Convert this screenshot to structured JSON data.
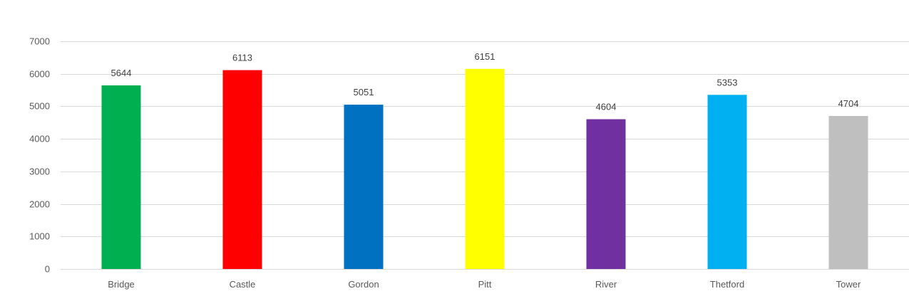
{
  "chart_data": {
    "type": "bar",
    "title": "",
    "xlabel": "",
    "ylabel": "",
    "categories": [
      "Bridge",
      "Castle",
      "Gordon",
      "Pitt",
      "River",
      "Thetford",
      "Tower"
    ],
    "values": [
      5644,
      6113,
      5051,
      6151,
      4604,
      5353,
      4704
    ],
    "colors": [
      "#00b050",
      "#ff0000",
      "#0070c0",
      "#ffff00",
      "#7030a0",
      "#00b0f0",
      "#bfbfbf"
    ],
    "ylim": [
      0,
      7000
    ],
    "yticks": [
      0,
      1000,
      2000,
      3000,
      4000,
      5000,
      6000,
      7000
    ],
    "grid": true,
    "legend": "none",
    "data_labels": true
  }
}
